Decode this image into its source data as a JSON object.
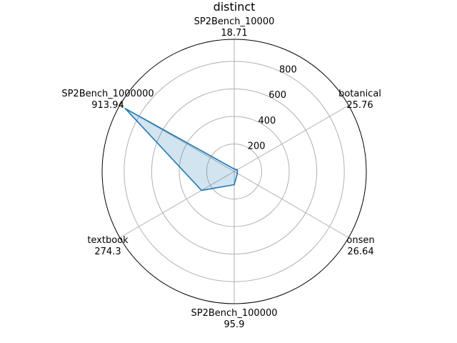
{
  "chart_data": {
    "type": "radar",
    "title": "distinct",
    "categories": [
      "SP2Bench_10000",
      "botanical",
      "onsen",
      "SP2Bench_100000",
      "textbook",
      "SP2Bench_1000000"
    ],
    "value_labels": [
      "18.71",
      "25.76",
      "26.64",
      "95.9",
      "274.3",
      "913.94"
    ],
    "values": [
      18.71,
      25.76,
      26.64,
      95.9,
      274.3,
      913.94
    ],
    "rlim": [
      0,
      960
    ],
    "r_ticks": [
      200,
      400,
      600,
      800
    ],
    "r_tick_labels": [
      "200",
      "400",
      "600",
      "800"
    ],
    "grid": true,
    "colors": {
      "line": "#1f77b4",
      "fill": "#1f77b4",
      "grid": "#b0b0b0"
    }
  }
}
